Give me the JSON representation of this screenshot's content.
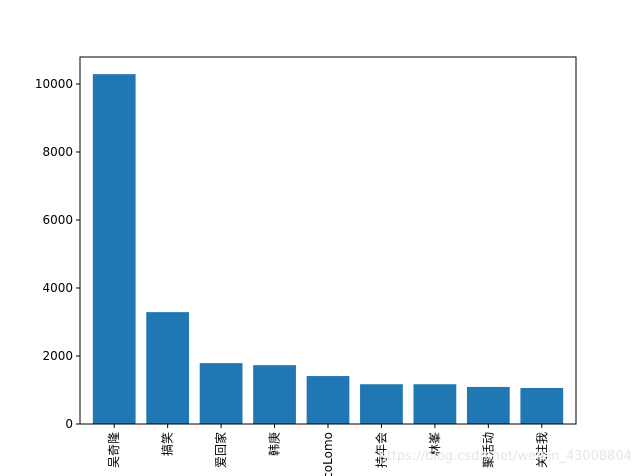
{
  "chart_data": {
    "type": "bar",
    "categories": [
      "吴奇隆",
      "搞笑",
      "爱回家",
      "韩庚",
      "coLomo",
      "持年会",
      "林峯",
      "聚活动",
      "关注我"
    ],
    "values": [
      10290,
      3290,
      1790,
      1730,
      1410,
      1170,
      1170,
      1090,
      1060
    ],
    "color": "#1f77b4",
    "ylim": [
      0,
      10794
    ],
    "yticks": [
      0,
      2000,
      4000,
      6000,
      8000,
      10000
    ],
    "watermark": "https://blog.csdn.net/weixin_43008804"
  }
}
